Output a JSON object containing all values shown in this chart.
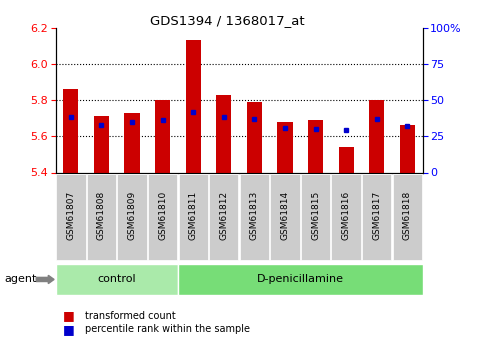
{
  "title": "GDS1394 / 1368017_at",
  "categories": [
    "GSM61807",
    "GSM61808",
    "GSM61809",
    "GSM61810",
    "GSM61811",
    "GSM61812",
    "GSM61813",
    "GSM61814",
    "GSM61815",
    "GSM61816",
    "GSM61817",
    "GSM61818"
  ],
  "transformed_count": [
    5.86,
    5.71,
    5.73,
    5.8,
    6.13,
    5.83,
    5.79,
    5.68,
    5.69,
    5.54,
    5.8,
    5.66
  ],
  "percentile_rank": [
    38,
    33,
    35,
    36,
    42,
    38,
    37,
    31,
    30,
    29,
    37,
    32
  ],
  "ylim_left": [
    5.4,
    6.2
  ],
  "ylim_right": [
    0,
    100
  ],
  "yticks_left": [
    5.4,
    5.6,
    5.8,
    6.0,
    6.2
  ],
  "yticks_right": [
    0,
    25,
    50,
    75,
    100
  ],
  "ytick_labels_right": [
    "0",
    "25",
    "50",
    "75",
    "100%"
  ],
  "bar_color": "#cc0000",
  "dot_color": "#0000cc",
  "n_control": 4,
  "n_treatment": 8,
  "control_label": "control",
  "treatment_label": "D-penicillamine",
  "agent_label": "agent",
  "legend_item_red": "transformed count",
  "legend_item_blue": "percentile rank within the sample",
  "bg_control": "#aaeaaa",
  "bg_treatment": "#77dd77",
  "bg_xticklabel": "#cccccc",
  "base_value": 5.4,
  "dotted_yticks": [
    5.6,
    5.8,
    6.0
  ],
  "bar_width": 0.5
}
